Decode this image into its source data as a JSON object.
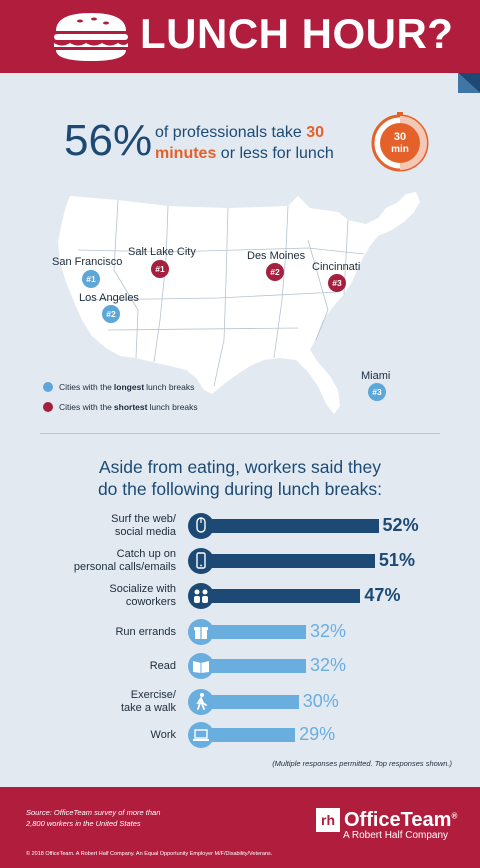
{
  "header": {
    "title": "LUNCH HOUR?"
  },
  "stat": {
    "big": "56%",
    "line1_pre": "of professionals take ",
    "line1_hl": "30",
    "line2_hl": "minutes",
    "line2_post": " or less for lunch"
  },
  "clock": {
    "line1": "30",
    "line2": "min"
  },
  "map": {
    "cities": [
      {
        "name": "San Francisco",
        "rank": "#1",
        "type": "longest"
      },
      {
        "name": "Los Angeles",
        "rank": "#2",
        "type": "longest"
      },
      {
        "name": "Miami",
        "rank": "#3",
        "type": "longest"
      },
      {
        "name": "Salt Lake City",
        "rank": "#1",
        "type": "shortest"
      },
      {
        "name": "Des Moines",
        "rank": "#2",
        "type": "shortest"
      },
      {
        "name": "Cincinnati",
        "rank": "#3",
        "type": "shortest"
      }
    ],
    "legend": {
      "longest_pre": "Cities with the ",
      "longest_bold": "longest",
      "longest_post": " lunch breaks",
      "shortest_pre": "Cities with the ",
      "shortest_bold": "shortest",
      "shortest_post": " lunch breaks"
    }
  },
  "colors": {
    "longest": "#5da6d8",
    "shortest": "#a51f3e",
    "dark_bar": "#1c4a74",
    "light_bar": "#6aaee0",
    "brand": "#b01d3d"
  },
  "chart_data": {
    "type": "bar",
    "title": "Aside from eating, workers said they do the following during lunch breaks:",
    "title_line1": "Aside from eating, workers said they",
    "title_line2": "do the following during lunch breaks:",
    "categories": [
      "Surf the web/ social media",
      "Catch up on personal calls/emails",
      "Socialize with coworkers",
      "Run errands",
      "Read",
      "Exercise/ take a walk",
      "Work"
    ],
    "label_lines": [
      [
        "Surf the web/",
        "social media"
      ],
      [
        "Catch up on",
        "personal calls/emails"
      ],
      [
        "Socialize with",
        "coworkers"
      ],
      [
        "Run errands"
      ],
      [
        "Read"
      ],
      [
        "Exercise/",
        "take a walk"
      ],
      [
        "Work"
      ]
    ],
    "values": [
      52,
      51,
      47,
      32,
      32,
      30,
      29
    ],
    "value_labels": [
      "52%",
      "51%",
      "47%",
      "32%",
      "32%",
      "30%",
      "29%"
    ],
    "icons": [
      "mouse-icon",
      "phone-icon",
      "people-icon",
      "gift-icon",
      "book-icon",
      "walk-icon",
      "laptop-icon"
    ],
    "note": "(Multiple responses permitted. Top responses shown.)"
  },
  "footer": {
    "source_line1": "Source: OfficeTeam survey of more than",
    "source_line2": "2,800 workers in the United States",
    "copyright": "© 2018 OfficeTeam. A Robert Half Company. An Equal Opportunity Employer M/F/Disability/Veterans.",
    "brand_mark": "rh",
    "brand_name": "OfficeTeam",
    "brand_reg": "®",
    "brand_sub": "A Robert Half Company"
  }
}
